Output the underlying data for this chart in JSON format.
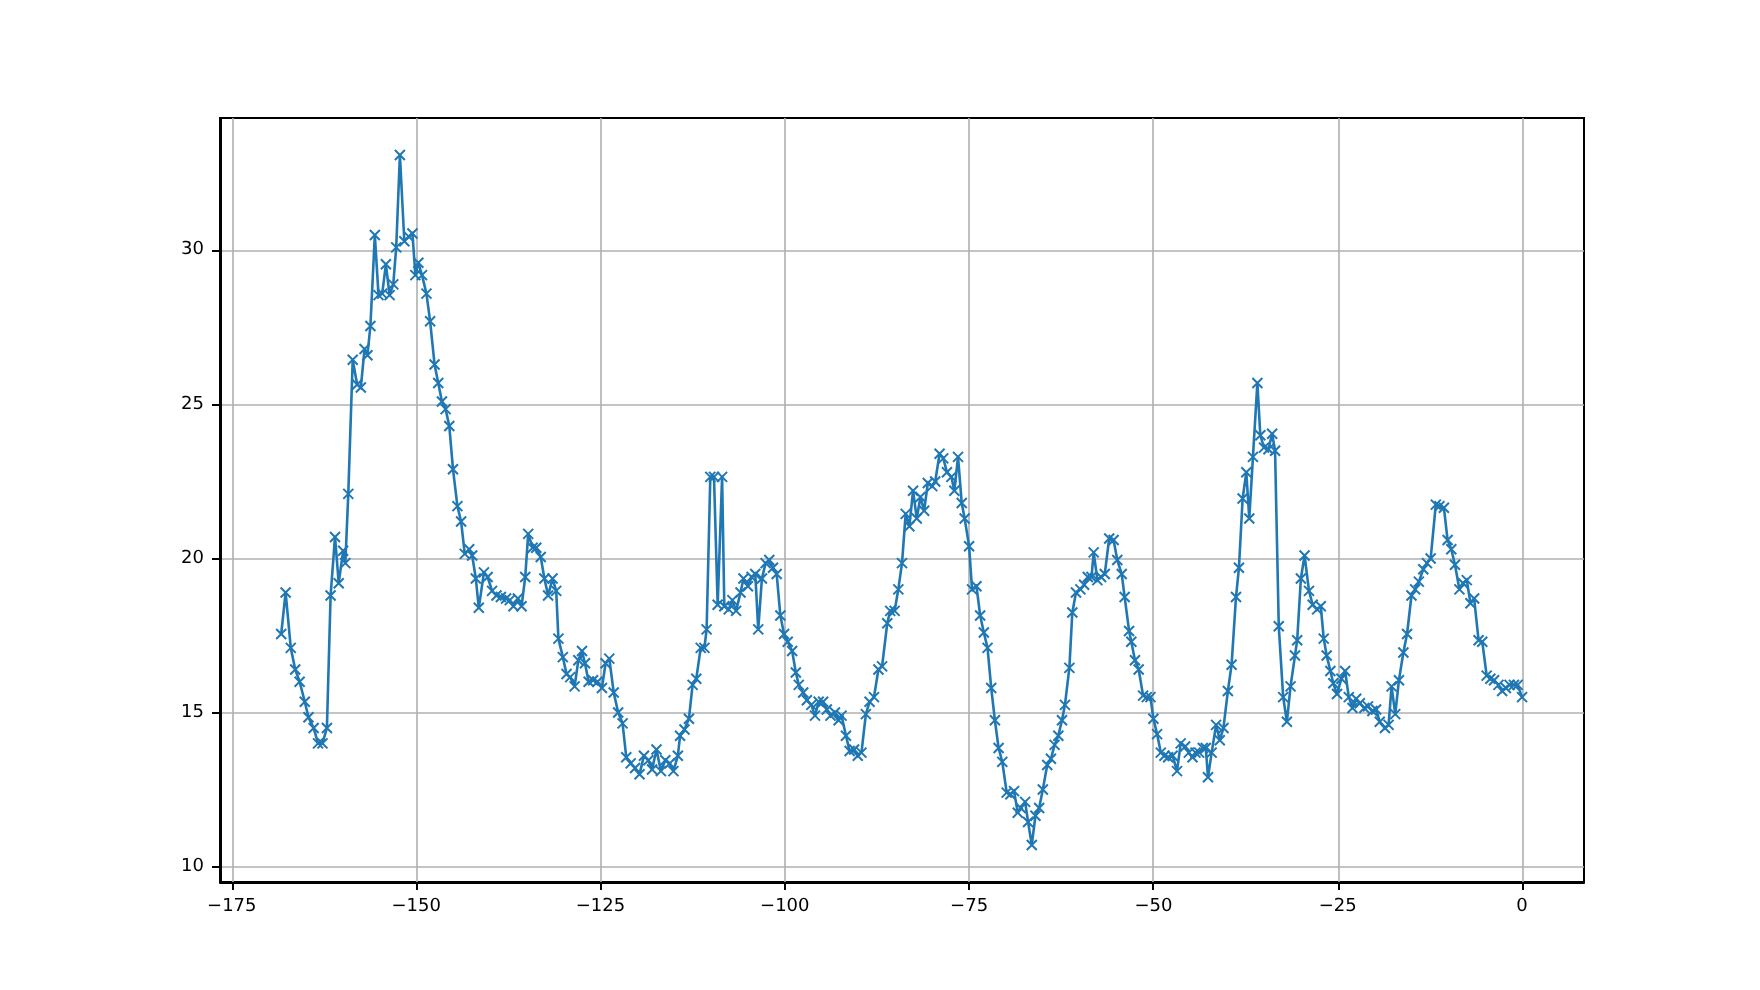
{
  "chart_data": {
    "type": "line",
    "x": [
      -168.3,
      -167.7,
      -167.0,
      -166.4,
      -165.8,
      -165.1,
      -164.6,
      -163.9,
      -163.3,
      -162.7,
      -162.1,
      -161.6,
      -161.0,
      -160.5,
      -159.9,
      -159.6,
      -159.2,
      -158.6,
      -158.0,
      -157.5,
      -157.0,
      -156.6,
      -156.2,
      -155.6,
      -155.1,
      -154.6,
      -154.1,
      -153.6,
      -153.1,
      -152.7,
      -152.2,
      -151.6,
      -151.0,
      -150.5,
      -150.1,
      -149.7,
      -149.2,
      -148.6,
      -148.1,
      -147.5,
      -147.0,
      -146.5,
      -146.0,
      -145.5,
      -145.0,
      -144.4,
      -143.9,
      -143.4,
      -142.8,
      -142.4,
      -141.9,
      -141.5,
      -140.8,
      -140.3,
      -139.7,
      -139.1,
      -138.5,
      -137.8,
      -137.3,
      -136.8,
      -136.2,
      -135.7,
      -135.2,
      -134.8,
      -134.2,
      -133.7,
      -133.1,
      -132.6,
      -132.1,
      -131.5,
      -131.0,
      -130.7,
      -130.1,
      -129.6,
      -129.1,
      -128.5,
      -128.0,
      -127.5,
      -127.1,
      -126.6,
      -126.0,
      -125.4,
      -124.8,
      -124.3,
      -123.8,
      -123.2,
      -122.6,
      -122.0,
      -121.5,
      -120.9,
      -120.3,
      -119.7,
      -119.1,
      -118.5,
      -118.0,
      -117.4,
      -116.8,
      -116.2,
      -115.6,
      -115.1,
      -114.5,
      -114.2,
      -113.6,
      -113.0,
      -112.5,
      -112.0,
      -111.4,
      -110.9,
      -110.6,
      -110.1,
      -109.6,
      -109.1,
      -108.5,
      -108.2,
      -107.6,
      -107.1,
      -106.6,
      -106.0,
      -105.6,
      -105.0,
      -104.5,
      -104.0,
      -103.6,
      -103.1,
      -102.6,
      -102.1,
      -101.6,
      -101.1,
      -100.6,
      -100.1,
      -99.6,
      -99.0,
      -98.5,
      -98.1,
      -97.5,
      -97.0,
      -96.4,
      -95.9,
      -95.4,
      -94.8,
      -94.3,
      -93.8,
      -93.2,
      -92.7,
      -92.3,
      -91.7,
      -91.2,
      -90.6,
      -90.1,
      -89.6,
      -89.0,
      -88.5,
      -87.9,
      -87.3,
      -86.8,
      -86.1,
      -85.7,
      -85.1,
      -84.6,
      -84.1,
      -83.6,
      -83.1,
      -82.6,
      -82.1,
      -81.6,
      -81.1,
      -80.6,
      -80.0,
      -79.6,
      -79.0,
      -78.5,
      -78.0,
      -77.4,
      -77.0,
      -76.5,
      -76.0,
      -75.6,
      -75.0,
      -74.6,
      -74.0,
      -73.5,
      -73.0,
      -72.5,
      -72.0,
      -71.5,
      -71.0,
      -70.5,
      -69.9,
      -69.4,
      -68.9,
      -68.4,
      -68.0,
      -67.4,
      -67.0,
      -66.5,
      -66.0,
      -65.5,
      -65.0,
      -64.4,
      -63.9,
      -63.4,
      -62.9,
      -62.4,
      -62.0,
      -61.4,
      -61.0,
      -60.5,
      -59.9,
      -59.4,
      -58.9,
      -58.4,
      -58.1,
      -57.6,
      -57.1,
      -56.6,
      -56.0,
      -55.4,
      -54.9,
      -54.3,
      -53.9,
      -53.3,
      -53.0,
      -52.5,
      -52.0,
      -51.4,
      -50.9,
      -50.4,
      -50.0,
      -49.5,
      -49.0,
      -48.5,
      -48.0,
      -47.4,
      -46.8,
      -46.3,
      -45.7,
      -45.2,
      -44.7,
      -44.3,
      -43.8,
      -43.3,
      -42.9,
      -42.6,
      -42.1,
      -41.5,
      -41.0,
      -40.5,
      -39.9,
      -39.4,
      -38.8,
      -38.4,
      -37.9,
      -37.4,
      -37.0,
      -36.5,
      -35.9,
      -35.5,
      -35.0,
      -34.4,
      -33.9,
      -33.5,
      -33.0,
      -32.4,
      -31.9,
      -31.4,
      -30.8,
      -30.5,
      -30.0,
      -29.5,
      -28.9,
      -28.4,
      -27.8,
      -27.3,
      -26.9,
      -26.5,
      -26.0,
      -25.6,
      -25.1,
      -24.5,
      -24.0,
      -23.5,
      -23.0,
      -22.5,
      -22.0,
      -21.4,
      -20.9,
      -20.3,
      -19.8,
      -19.3,
      -18.6,
      -18.1,
      -17.7,
      -17.2,
      -16.7,
      -16.1,
      -15.6,
      -15.0,
      -14.5,
      -14.0,
      -13.4,
      -12.9,
      -12.4,
      -11.7,
      -11.2,
      -10.6,
      -10.1,
      -9.6,
      -9.1,
      -8.5,
      -8.0,
      -7.5,
      -7.0,
      -6.5,
      -5.9,
      -5.4,
      -4.8,
      -4.3,
      -3.8,
      -3.2,
      -2.7,
      -2.2,
      -1.7,
      -1.1,
      -0.6,
      0.0
    ],
    "values": [
      17.55,
      18.9,
      17.1,
      16.4,
      16.0,
      15.35,
      14.85,
      14.5,
      14.0,
      14.0,
      14.5,
      18.8,
      20.7,
      19.2,
      20.25,
      19.85,
      22.1,
      26.45,
      25.65,
      25.55,
      26.8,
      26.6,
      27.55,
      30.5,
      28.55,
      28.6,
      29.55,
      28.55,
      28.9,
      30.1,
      33.1,
      30.3,
      30.45,
      30.55,
      29.2,
      29.6,
      29.2,
      28.6,
      27.7,
      26.3,
      25.7,
      25.1,
      24.85,
      24.3,
      22.9,
      21.7,
      21.2,
      20.15,
      20.3,
      20.1,
      19.35,
      18.4,
      19.55,
      19.4,
      18.95,
      18.8,
      18.75,
      18.7,
      18.65,
      18.45,
      18.7,
      18.45,
      19.4,
      20.8,
      20.35,
      20.35,
      20.05,
      19.35,
      18.8,
      19.35,
      18.95,
      17.4,
      16.8,
      16.25,
      16.15,
      15.85,
      16.7,
      17.0,
      16.6,
      16.0,
      16.05,
      16.0,
      15.8,
      16.6,
      16.75,
      15.65,
      15.0,
      14.65,
      13.55,
      13.35,
      13.2,
      13.0,
      13.6,
      13.45,
      13.15,
      13.8,
      13.1,
      13.45,
      13.35,
      13.1,
      13.6,
      14.25,
      14.45,
      14.8,
      15.9,
      16.1,
      17.1,
      17.1,
      17.7,
      22.65,
      22.65,
      18.5,
      22.65,
      18.45,
      18.35,
      18.65,
      18.3,
      18.9,
      19.35,
      19.1,
      19.4,
      19.5,
      17.7,
      19.35,
      19.85,
      19.95,
      19.7,
      19.5,
      18.15,
      17.55,
      17.3,
      17.0,
      16.3,
      15.9,
      15.65,
      15.4,
      15.25,
      14.9,
      15.35,
      15.35,
      15.1,
      14.9,
      15.0,
      14.75,
      14.9,
      14.25,
      13.75,
      13.8,
      13.6,
      13.7,
      14.95,
      15.35,
      15.5,
      16.4,
      16.5,
      17.9,
      18.3,
      18.3,
      19.0,
      19.85,
      21.45,
      21.05,
      22.2,
      21.3,
      22.0,
      21.55,
      22.45,
      22.35,
      22.5,
      23.4,
      23.25,
      22.8,
      22.65,
      22.2,
      23.3,
      21.8,
      21.3,
      20.4,
      19.0,
      19.1,
      18.15,
      17.6,
      17.1,
      15.8,
      14.75,
      13.85,
      13.4,
      12.4,
      12.35,
      12.45,
      11.75,
      11.9,
      12.1,
      11.45,
      10.7,
      11.65,
      11.9,
      12.5,
      13.3,
      13.5,
      13.95,
      14.25,
      14.75,
      15.25,
      16.45,
      18.25,
      18.9,
      19.0,
      19.15,
      19.4,
      19.4,
      20.2,
      19.3,
      19.4,
      19.5,
      20.65,
      20.6,
      19.95,
      19.5,
      18.75,
      17.65,
      17.3,
      16.7,
      16.4,
      15.55,
      15.5,
      15.5,
      14.8,
      14.3,
      13.7,
      13.6,
      13.55,
      13.6,
      13.1,
      14.0,
      13.9,
      13.7,
      13.55,
      13.7,
      13.7,
      13.85,
      13.85,
      12.9,
      13.7,
      14.6,
      14.1,
      14.5,
      15.7,
      16.55,
      18.75,
      19.7,
      21.95,
      22.8,
      21.3,
      23.3,
      25.7,
      24.0,
      23.6,
      23.55,
      24.05,
      23.5,
      17.8,
      15.5,
      14.7,
      15.85,
      16.85,
      17.35,
      19.35,
      20.1,
      18.95,
      18.5,
      18.35,
      18.45,
      17.4,
      16.85,
      16.35,
      15.95,
      15.6,
      16.1,
      16.35,
      15.5,
      15.15,
      15.45,
      15.3,
      15.15,
      15.2,
      15.05,
      15.1,
      14.7,
      14.5,
      14.6,
      15.85,
      14.95,
      16.05,
      16.95,
      17.55,
      18.8,
      19.0,
      19.25,
      19.65,
      19.85,
      20.0,
      21.75,
      21.7,
      21.65,
      20.6,
      20.3,
      19.8,
      19.0,
      19.2,
      19.3,
      18.55,
      18.7,
      17.35,
      17.3,
      16.2,
      16.1,
      16.05,
      15.9,
      15.7,
      15.8,
      15.9,
      15.9,
      15.9,
      15.5
    ],
    "color": "#1f77b4",
    "marker": "cross",
    "line_style": "solid",
    "xlim": [
      -176.6,
      8.4
    ],
    "xticks": [
      -175,
      -150,
      -125,
      -100,
      -75,
      -50,
      -25,
      0
    ],
    "ylim": [
      9.5,
      34.3
    ],
    "yticks": [
      10,
      15,
      20,
      25,
      30
    ],
    "grid": true
  }
}
